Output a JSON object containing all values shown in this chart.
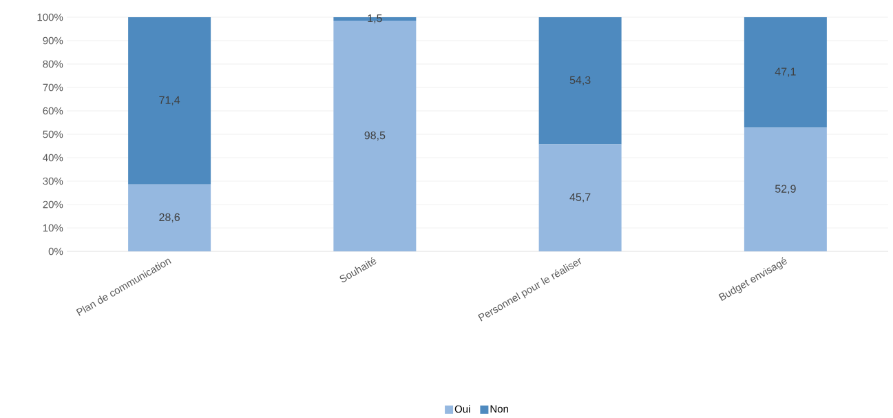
{
  "chart_data": {
    "type": "bar",
    "stacked": true,
    "categories": [
      "Plan de communication",
      "Souhaité",
      "Personnel pour le réaliser",
      "Budget envisagé"
    ],
    "series": [
      {
        "name": "Oui",
        "color": "#95b8e0",
        "values": [
          28.6,
          98.5,
          45.7,
          52.9
        ],
        "value_labels": [
          "28,6",
          "98,5",
          "45,7",
          "52,9"
        ]
      },
      {
        "name": "Non",
        "color": "#4e8abf",
        "values": [
          71.4,
          1.5,
          54.3,
          47.1
        ],
        "value_labels": [
          "71,4",
          "1,5",
          "54,3",
          "47,1"
        ]
      }
    ],
    "ylim": [
      0,
      100
    ],
    "yticks": [
      {
        "value": 0,
        "label": "0%"
      },
      {
        "value": 10,
        "label": "10%"
      },
      {
        "value": 20,
        "label": "20%"
      },
      {
        "value": 30,
        "label": "30%"
      },
      {
        "value": 40,
        "label": "40%"
      },
      {
        "value": 50,
        "label": "50%"
      },
      {
        "value": 60,
        "label": "60%"
      },
      {
        "value": 70,
        "label": "70%"
      },
      {
        "value": 80,
        "label": "80%"
      },
      {
        "value": 90,
        "label": "90%"
      },
      {
        "value": 100,
        "label": "100%"
      }
    ],
    "grid": "y",
    "legend": "bottom"
  }
}
